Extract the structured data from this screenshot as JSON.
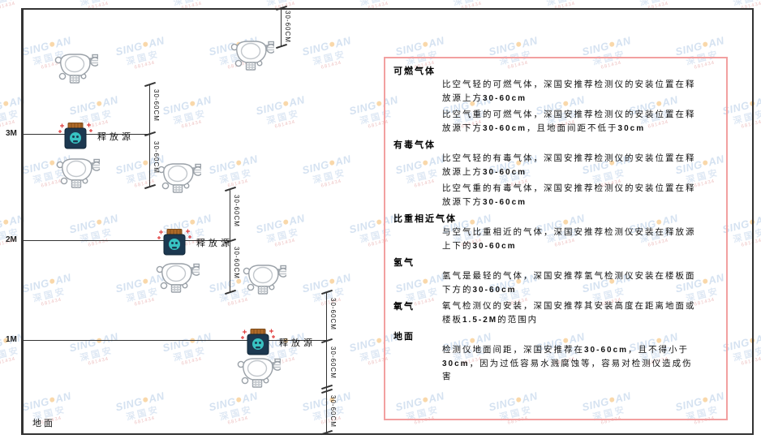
{
  "watermark": {
    "brand_left": "SING",
    "brand_right": "AN",
    "brand_cn": "深国安",
    "sub_text": "681434"
  },
  "colors": {
    "panel_border": "#f2a0a0",
    "line": "#333333",
    "watermark_blue": "#b3cbe6",
    "watermark_red": "#e09090",
    "brand_dot": "#f0a030",
    "source_body": "#1c3850",
    "source_cap": "#b06a28",
    "source_mark_teal": "#38c2c2",
    "spark_red": "#e04040",
    "detector_stroke": "#9aa1a8"
  },
  "diagram": {
    "ground_label": "地面",
    "height_labels": [
      "3M",
      "2M",
      "1M"
    ],
    "source_label": "释放源",
    "dim_label": "30-60CM"
  },
  "panel": {
    "sections": [
      {
        "heading": "可燃气体",
        "paras": [
          "比空气轻的可燃气体，深国安推荐检测仪的安装位置在释放源上方30-60cm",
          "比空气重的可燃气体，深国安推荐检测仪的安装位置在释放源下方30-60cm，且地面间距不低于30cm"
        ]
      },
      {
        "heading": "有毒气体",
        "paras": [
          "比空气轻的有毒气体，深国安推荐检测仪的安装位置在释放源上方30-60cm",
          "比空气重的有毒气体，深国安推荐检测仪的安装位置在释放源下方30-60cm"
        ]
      },
      {
        "heading": "比重相近气体",
        "paras": [
          "与空气比重相近的气体，深国安推荐检测仪安装在释放源上下的30-60cm"
        ]
      },
      {
        "heading": "氢气",
        "paras": [
          "氢气是最轻的气体，深国安推荐氢气检测仪安装在楼板面下方的30-60cm"
        ]
      },
      {
        "heading": "氧气",
        "paras": [
          "氧气检测仪的安装，深国安推荐其安装高度在距离地面或楼板1.5-2M的范围内"
        ]
      },
      {
        "heading": "地面",
        "paras": [
          "检测仪地面间距，深国安推荐在30-60cm，且不得小于30cm，因为过低容易水溅腐蚀等，容易对检测仪造成伤害"
        ]
      }
    ]
  }
}
